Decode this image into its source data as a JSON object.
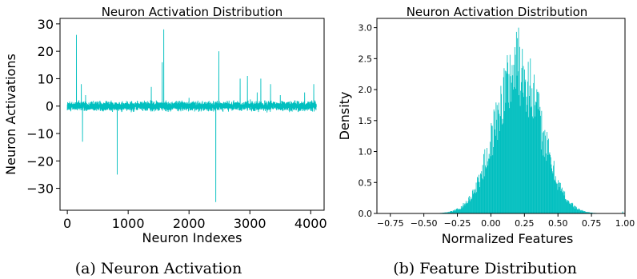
{
  "charts": {
    "left": {
      "caption": "(a) Neuron Activation"
    },
    "right": {
      "caption": "(b) Feature Distribution"
    }
  },
  "chart_data": [
    {
      "type": "line",
      "title": "Neuron Activation Distribution",
      "xlabel": "Neuron Indexes",
      "ylabel": "Neuron Activations",
      "xlim": [
        -120,
        4220
      ],
      "ylim": [
        -38,
        32
      ],
      "xticks": [
        0,
        1000,
        2000,
        3000,
        4000
      ],
      "yticks": [
        30,
        20,
        10,
        0,
        -10,
        -20,
        -30
      ],
      "ytick_labels": [
        "30",
        "20",
        "10",
        "0",
        "−10",
        "−20",
        "−30"
      ],
      "color": "#00bfbf",
      "n_points": 4096,
      "baseline_noise_range": [
        -2.5,
        2.5
      ],
      "spikes": [
        {
          "x": 150,
          "y": 26
        },
        {
          "x": 230,
          "y": 8
        },
        {
          "x": 250,
          "y": -13
        },
        {
          "x": 300,
          "y": 4
        },
        {
          "x": 820,
          "y": -25
        },
        {
          "x": 1380,
          "y": 7
        },
        {
          "x": 1560,
          "y": 16
        },
        {
          "x": 1585,
          "y": 28
        },
        {
          "x": 2000,
          "y": 3
        },
        {
          "x": 2440,
          "y": -35
        },
        {
          "x": 2490,
          "y": 20
        },
        {
          "x": 2840,
          "y": 10
        },
        {
          "x": 2960,
          "y": 11
        },
        {
          "x": 3120,
          "y": 5
        },
        {
          "x": 3180,
          "y": 10
        },
        {
          "x": 3340,
          "y": 8
        },
        {
          "x": 3500,
          "y": 4
        },
        {
          "x": 3900,
          "y": 5
        },
        {
          "x": 4050,
          "y": 8
        }
      ]
    },
    {
      "type": "bar",
      "subtype": "histogram",
      "title": "Neuron Activation Distribution",
      "xlabel": "Normalized Features",
      "ylabel": "Density",
      "xlim": [
        -0.85,
        1.0
      ],
      "ylim": [
        0,
        3.15
      ],
      "xticks": [
        -0.75,
        -0.5,
        -0.25,
        0.0,
        0.25,
        0.5,
        0.75,
        1.0
      ],
      "xtick_labels": [
        "−0.75",
        "−0.50",
        "−0.25",
        "0.00",
        "0.25",
        "0.50",
        "0.75",
        "1.00"
      ],
      "yticks": [
        0.0,
        0.5,
        1.0,
        1.5,
        2.0,
        2.5,
        3.0
      ],
      "ytick_labels": [
        "0.0",
        "0.5",
        "1.0",
        "1.5",
        "2.0",
        "2.5",
        "3.0"
      ],
      "color": "#00bfbf",
      "distribution": {
        "kind": "normal",
        "mean": 0.2,
        "std": 0.17,
        "peak_density": 2.35,
        "max_bin": 3.0
      },
      "bin_width": 0.004,
      "outlier_x": 0.98
    }
  ]
}
